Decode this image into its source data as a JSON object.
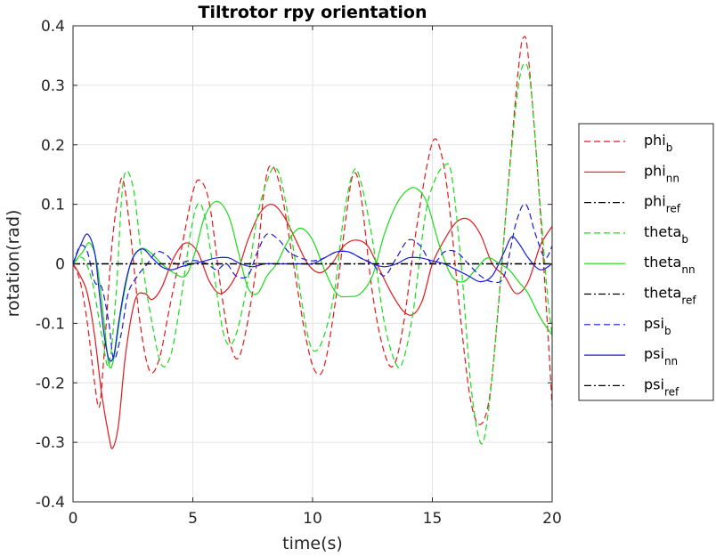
{
  "chart_data": {
    "type": "line",
    "title": "Tiltrotor rpy orientation",
    "xlabel": "time(s)",
    "ylabel": "rotation(rad)",
    "xlim": [
      0,
      20
    ],
    "ylim": [
      -0.4,
      0.4
    ],
    "xticks": [
      0,
      5,
      10,
      15,
      20
    ],
    "xtick_labels": [
      "0",
      "5",
      "10",
      "15",
      "20"
    ],
    "yticks": [
      -0.4,
      -0.3,
      -0.2,
      -0.1,
      0,
      0.1,
      0.2,
      0.3,
      0.4
    ],
    "ytick_labels": [
      "-0.4",
      "-0.3",
      "-0.2",
      "-0.1",
      "0",
      "0.1",
      "0.2",
      "0.3",
      "0.4"
    ],
    "grid": true,
    "legend_position": "outside-right",
    "series": [
      {
        "name": "phi",
        "sub": "b",
        "color": "#e0191c",
        "style": "dashed",
        "x": [
          0,
          0.3,
          0.6,
          0.9,
          1.1,
          1.3,
          1.6,
          1.9,
          2.1,
          2.4,
          2.8,
          3.2,
          3.6,
          4.0,
          4.5,
          5.0,
          5.3,
          5.7,
          6.2,
          6.6,
          7.0,
          7.6,
          8.0,
          8.3,
          8.7,
          9.2,
          9.7,
          10.1,
          10.5,
          11.0,
          11.4,
          11.7,
          12.0,
          12.5,
          13.0,
          13.4,
          13.8,
          14.3,
          14.8,
          15.1,
          15.4,
          15.7,
          16.2,
          16.6,
          17.0,
          17.4,
          17.8,
          18.2,
          18.6,
          18.8,
          19.0,
          19.4,
          19.8,
          20.0
        ],
        "y": [
          0,
          -0.03,
          -0.1,
          -0.2,
          -0.24,
          -0.15,
          0.02,
          0.12,
          0.14,
          0.05,
          -0.1,
          -0.18,
          -0.16,
          -0.08,
          0.02,
          0.12,
          0.14,
          0.1,
          -0.05,
          -0.14,
          -0.15,
          -0.02,
          0.13,
          0.165,
          0.12,
          0.0,
          -0.12,
          -0.18,
          -0.17,
          -0.05,
          0.08,
          0.15,
          0.12,
          -0.05,
          -0.15,
          -0.17,
          -0.1,
          0.05,
          0.17,
          0.21,
          0.18,
          0.1,
          -0.1,
          -0.23,
          -0.27,
          -0.22,
          -0.05,
          0.15,
          0.33,
          0.38,
          0.35,
          0.15,
          -0.1,
          -0.24
        ]
      },
      {
        "name": "phi",
        "sub": "nn",
        "color": "#e0191c",
        "style": "solid",
        "x": [
          0,
          0.3,
          0.6,
          0.9,
          1.2,
          1.5,
          1.65,
          1.9,
          2.2,
          2.6,
          3.0,
          3.3,
          3.7,
          4.2,
          4.7,
          5.2,
          5.7,
          6.2,
          6.8,
          7.3,
          7.8,
          8.3,
          8.8,
          9.3,
          9.8,
          10.3,
          10.8,
          11.3,
          11.8,
          12.3,
          12.8,
          13.3,
          13.8,
          14.2,
          14.6,
          15.0,
          15.5,
          16.0,
          16.5,
          17.0,
          17.5,
          18.0,
          18.5,
          19.0,
          19.5,
          20.0
        ],
        "y": [
          0,
          -0.02,
          -0.05,
          -0.12,
          -0.22,
          -0.29,
          -0.31,
          -0.27,
          -0.15,
          -0.06,
          -0.05,
          -0.06,
          -0.04,
          0.01,
          0.035,
          0.02,
          -0.03,
          -0.05,
          -0.02,
          0.04,
          0.085,
          0.1,
          0.08,
          0.04,
          0.0,
          -0.015,
          0.0,
          0.03,
          0.04,
          0.03,
          -0.01,
          -0.05,
          -0.08,
          -0.085,
          -0.06,
          0.0,
          0.04,
          0.07,
          0.075,
          0.05,
          0.0,
          -0.02,
          -0.05,
          -0.03,
          0.03,
          0.063
        ]
      },
      {
        "name": "phi",
        "sub": "ref",
        "color": "#000000",
        "style": "dashdot",
        "x": [
          0,
          20
        ],
        "y": [
          0,
          0
        ]
      },
      {
        "name": "theta",
        "sub": "b",
        "color": "#18dd18",
        "style": "dashed",
        "x": [
          0,
          0.4,
          0.8,
          1.2,
          1.5,
          1.8,
          2.1,
          2.5,
          2.9,
          3.3,
          3.7,
          4.1,
          4.5,
          4.9,
          5.2,
          5.5,
          5.9,
          6.3,
          6.7,
          7.2,
          7.7,
          8.2,
          8.5,
          8.8,
          9.3,
          9.7,
          10.0,
          10.4,
          10.9,
          11.3,
          11.7,
          12.0,
          12.5,
          13.0,
          13.5,
          13.8,
          14.2,
          14.7,
          15.1,
          15.5,
          15.8,
          16.2,
          16.6,
          17.0,
          17.3,
          17.7,
          18.1,
          18.5,
          18.8,
          19.1,
          19.5,
          19.8,
          20.0
        ],
        "y": [
          0,
          0.01,
          -0.03,
          -0.12,
          -0.17,
          -0.05,
          0.14,
          0.13,
          0.0,
          -0.1,
          -0.17,
          -0.15,
          -0.06,
          0.05,
          0.1,
          0.08,
          -0.02,
          -0.12,
          -0.13,
          -0.05,
          0.08,
          0.15,
          0.16,
          0.12,
          0.0,
          -0.1,
          -0.145,
          -0.13,
          -0.05,
          0.08,
          0.155,
          0.14,
          0.04,
          -0.1,
          -0.17,
          -0.16,
          -0.08,
          0.08,
          0.14,
          0.165,
          0.15,
          0.0,
          -0.2,
          -0.3,
          -0.26,
          -0.1,
          0.1,
          0.27,
          0.335,
          0.3,
          0.1,
          -0.05,
          -0.12
        ]
      },
      {
        "name": "theta",
        "sub": "nn",
        "color": "#18dd18",
        "style": "solid",
        "x": [
          0,
          0.4,
          0.7,
          1.0,
          1.3,
          1.5,
          1.7,
          2.0,
          2.4,
          2.8,
          3.2,
          3.7,
          4.2,
          4.7,
          5.1,
          5.5,
          6.0,
          6.5,
          6.9,
          7.3,
          7.7,
          8.1,
          8.5,
          9.0,
          9.5,
          10.0,
          10.5,
          11.0,
          11.5,
          12.0,
          12.5,
          13.0,
          13.5,
          14.0,
          14.4,
          14.8,
          15.3,
          15.8,
          16.3,
          16.8,
          17.3,
          17.8,
          18.2,
          18.6,
          19.0,
          19.5,
          20.0
        ],
        "y": [
          0,
          0.02,
          0.035,
          0.0,
          -0.1,
          -0.17,
          -0.16,
          -0.08,
          0.0,
          0.025,
          0.02,
          0.0,
          -0.015,
          -0.02,
          0.02,
          0.08,
          0.105,
          0.08,
          0.02,
          -0.04,
          -0.05,
          -0.02,
          0.0,
          0.04,
          0.06,
          0.04,
          -0.01,
          -0.05,
          -0.055,
          -0.05,
          -0.02,
          0.05,
          0.1,
          0.125,
          0.125,
          0.1,
          0.03,
          -0.02,
          -0.03,
          -0.01,
          0.01,
          0.0,
          -0.01,
          -0.03,
          -0.05,
          -0.09,
          -0.12
        ]
      },
      {
        "name": "theta",
        "sub": "ref",
        "color": "#000000",
        "style": "dashdot",
        "x": [
          0,
          20
        ],
        "y": [
          0,
          0
        ]
      },
      {
        "name": "psi",
        "sub": "b",
        "color": "#1a1ae0",
        "style": "dashed",
        "x": [
          0,
          0.3,
          0.6,
          0.9,
          1.2,
          1.5,
          1.7,
          2.0,
          2.3,
          2.7,
          3.1,
          3.5,
          3.9,
          4.3,
          4.8,
          5.2,
          5.6,
          6.0,
          6.4,
          6.8,
          7.3,
          7.7,
          8.1,
          8.6,
          9.0,
          9.5,
          10.0,
          10.5,
          11.0,
          11.5,
          12.0,
          12.5,
          13.0,
          13.5,
          14.0,
          14.5,
          15.0,
          15.5,
          16.0,
          16.5,
          17.0,
          17.5,
          18.0,
          18.5,
          18.9,
          19.3,
          19.7,
          20.0
        ],
        "y": [
          0,
          0.03,
          0.02,
          -0.03,
          -0.04,
          -0.1,
          -0.16,
          -0.12,
          -0.05,
          -0.02,
          0.0,
          0.02,
          0.015,
          0.0,
          0.005,
          0.005,
          0.0,
          -0.01,
          0.0,
          -0.02,
          -0.02,
          0.02,
          0.05,
          0.04,
          0.02,
          0.01,
          0.005,
          0.01,
          0.02,
          0.02,
          0.01,
          0.0,
          -0.02,
          0.01,
          0.04,
          0.03,
          0.0,
          0.02,
          0.02,
          0.0,
          -0.02,
          -0.03,
          -0.02,
          0.07,
          0.1,
          0.05,
          0.01,
          0.03
        ]
      },
      {
        "name": "psi",
        "sub": "nn",
        "color": "#1a1ae0",
        "style": "solid",
        "x": [
          0,
          0.3,
          0.6,
          0.9,
          1.1,
          1.3,
          1.5,
          1.7,
          1.9,
          2.2,
          2.5,
          2.9,
          3.3,
          3.7,
          4.1,
          4.5,
          5.0,
          5.5,
          6.0,
          6.5,
          7.0,
          7.5,
          8.0,
          8.5,
          9.0,
          9.5,
          10.0,
          10.5,
          11.0,
          11.5,
          12.0,
          12.5,
          13.0,
          13.5,
          14.0,
          14.5,
          15.0,
          15.5,
          16.0,
          16.5,
          17.0,
          17.5,
          18.0,
          18.3,
          18.6,
          19.0,
          19.5,
          20.0
        ],
        "y": [
          0,
          0.03,
          0.05,
          0.02,
          -0.05,
          -0.12,
          -0.16,
          -0.155,
          -0.1,
          -0.03,
          0.01,
          0.025,
          0.01,
          -0.005,
          -0.01,
          -0.005,
          0.0,
          0.005,
          0.01,
          0.01,
          0.0,
          -0.005,
          0.0,
          0.0,
          0.0,
          0.0,
          0.0,
          0.01,
          0.02,
          0.02,
          0.01,
          0.0,
          -0.005,
          0.0,
          0.01,
          0.01,
          0.005,
          0.0,
          -0.01,
          -0.02,
          -0.03,
          -0.02,
          0.02,
          0.045,
          0.035,
          0.01,
          -0.01,
          0.0
        ]
      },
      {
        "name": "psi",
        "sub": "ref",
        "color": "#000000",
        "style": "dashdot",
        "x": [
          0,
          20
        ],
        "y": [
          0,
          0
        ]
      }
    ]
  }
}
